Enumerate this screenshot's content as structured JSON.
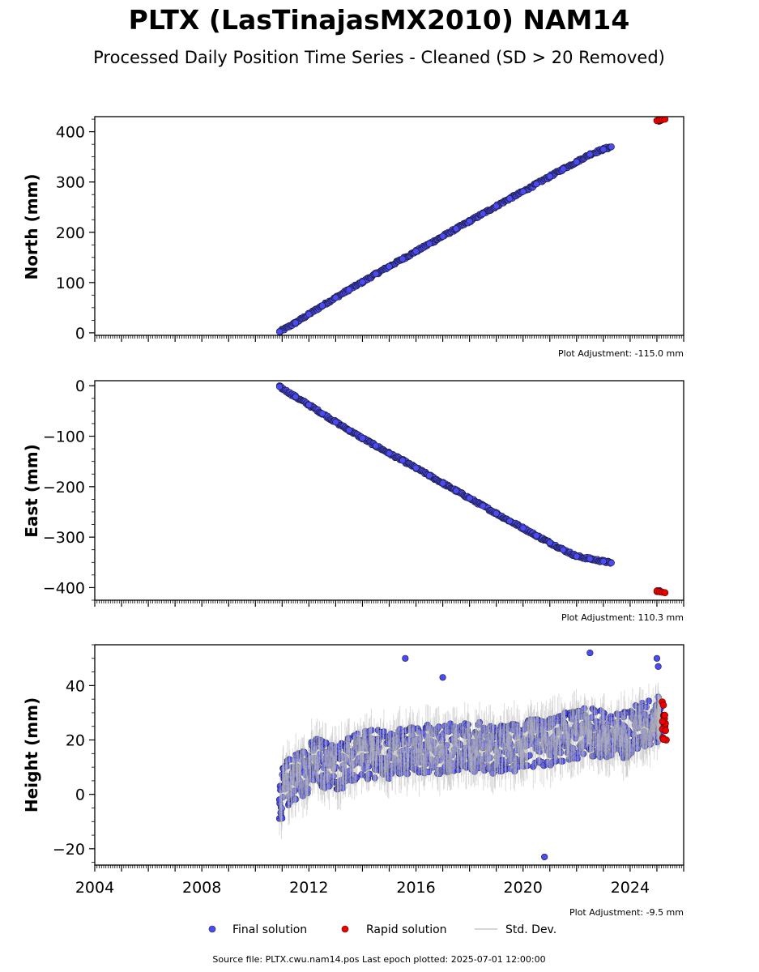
{
  "title": "PLTX (LasTinajasMX2010) NAM14",
  "subtitle": "Processed Daily Position Time Series - Cleaned (SD > 20 Removed)",
  "source": "Source file: PLTX.cwu.nam14.pos  Last epoch plotted: 2025-07-01 12:00:00",
  "colors": {
    "final": "#4b4bf5",
    "rapid": "#ee0000",
    "stddev": "#c8c8c8",
    "edge": "#1a1a3a"
  },
  "legend": [
    {
      "label": "Final solution",
      "marker": "circle",
      "color": "#4b4bf5"
    },
    {
      "label": "Rapid solution",
      "marker": "circle",
      "color": "#ee0000"
    },
    {
      "label": "Std. Dev.",
      "marker": "line",
      "color": "#c8c8c8"
    }
  ],
  "chart_data": [
    {
      "type": "scatter",
      "ylabel": "North (mm)",
      "adjustment": "Plot Adjustment: -115.0 mm",
      "xlim": [
        2004,
        2026
      ],
      "ylim": [
        -5,
        430
      ],
      "yticks": [
        0,
        100,
        200,
        300,
        400
      ],
      "yticklabels": [
        "0",
        "100",
        "200",
        "300",
        "400"
      ],
      "series": [
        {
          "name": "Final solution",
          "x": [
            2010.9,
            2011.5,
            2012.0,
            2012.5,
            2013.0,
            2013.5,
            2014.0,
            2014.5,
            2015.0,
            2015.5,
            2016.0,
            2016.5,
            2017.0,
            2017.5,
            2018.0,
            2018.5,
            2019.0,
            2019.5,
            2020.0,
            2020.5,
            2021.0,
            2021.5,
            2022.0,
            2022.5,
            2023.0,
            2023.3
          ],
          "y": [
            2,
            20,
            37,
            54,
            70,
            86,
            101,
            117,
            132,
            147,
            162,
            177,
            192,
            207,
            222,
            237,
            252,
            267,
            281,
            296,
            311,
            326,
            340,
            355,
            365,
            370
          ]
        },
        {
          "name": "Rapid solution",
          "x": [
            2025.0,
            2025.1,
            2025.2,
            2025.3
          ],
          "y": [
            422,
            423,
            424,
            425
          ]
        }
      ]
    },
    {
      "type": "scatter",
      "ylabel": "East (mm)",
      "adjustment": "Plot Adjustment: 110.3 mm",
      "xlim": [
        2004,
        2026
      ],
      "ylim": [
        -425,
        10
      ],
      "yticks": [
        0,
        -100,
        -200,
        -300,
        -400
      ],
      "yticklabels": [
        "0",
        "−100",
        "−200",
        "−300",
        "−400"
      ],
      "series": [
        {
          "name": "Final solution",
          "x": [
            2010.9,
            2011.5,
            2012.0,
            2012.5,
            2013.0,
            2013.5,
            2014.0,
            2014.5,
            2015.0,
            2015.5,
            2016.0,
            2016.5,
            2017.0,
            2017.5,
            2018.0,
            2018.5,
            2019.0,
            2019.5,
            2020.0,
            2020.5,
            2021.0,
            2021.5,
            2022.0,
            2022.5,
            2023.0,
            2023.3
          ],
          "y": [
            -2,
            -22,
            -38,
            -55,
            -72,
            -88,
            -104,
            -119,
            -134,
            -148,
            -163,
            -178,
            -193,
            -208,
            -223,
            -238,
            -253,
            -268,
            -282,
            -297,
            -311,
            -325,
            -338,
            -343,
            -348,
            -351
          ]
        },
        {
          "name": "Rapid solution",
          "x": [
            2025.0,
            2025.1,
            2025.2,
            2025.3
          ],
          "y": [
            -407,
            -408,
            -409,
            -410
          ]
        }
      ]
    },
    {
      "type": "scatter",
      "ylabel": "Height (mm)",
      "adjustment": "Plot Adjustment: -9.5 mm",
      "xlim": [
        2004,
        2026
      ],
      "ylim": [
        -26,
        55
      ],
      "yticks": [
        -20,
        0,
        20,
        40
      ],
      "yticklabels": [
        "−20",
        "0",
        "20",
        "40"
      ],
      "xticks": [
        2004,
        2008,
        2012,
        2016,
        2020,
        2024
      ],
      "xticklabels": [
        "2004",
        "2008",
        "2012",
        "2016",
        "2020",
        "2024"
      ],
      "series": [
        {
          "name": "Final solution",
          "x": [
            2010.9,
            2011.2,
            2011.5,
            2011.8,
            2012.0,
            2012.3,
            2012.6,
            2013.0,
            2013.5,
            2014.0,
            2014.5,
            2015.0,
            2015.5,
            2016.0,
            2016.5,
            2017.0,
            2017.5,
            2018.0,
            2018.5,
            2019.0,
            2019.5,
            2020.0,
            2020.5,
            2021.0,
            2021.5,
            2022.0,
            2022.5,
            2023.0,
            2023.3,
            2025.1
          ],
          "y": [
            -2,
            4,
            7,
            8,
            10,
            12,
            11,
            10,
            12,
            14,
            15,
            14,
            16,
            16,
            17,
            16,
            18,
            17,
            18,
            16,
            17,
            18,
            19,
            19,
            21,
            22,
            23,
            22,
            20,
            28
          ]
        },
        {
          "name": "Rapid solution",
          "x": [
            2025.2,
            2025.25,
            2025.3,
            2025.35
          ],
          "y": [
            34,
            29,
            25,
            20
          ]
        }
      ],
      "outliers": {
        "x": [
          2015.6,
          2017.0,
          2020.8,
          2022.5,
          2025.0,
          2025.05
        ],
        "y": [
          50,
          43,
          -23,
          52,
          50,
          47
        ]
      }
    }
  ]
}
